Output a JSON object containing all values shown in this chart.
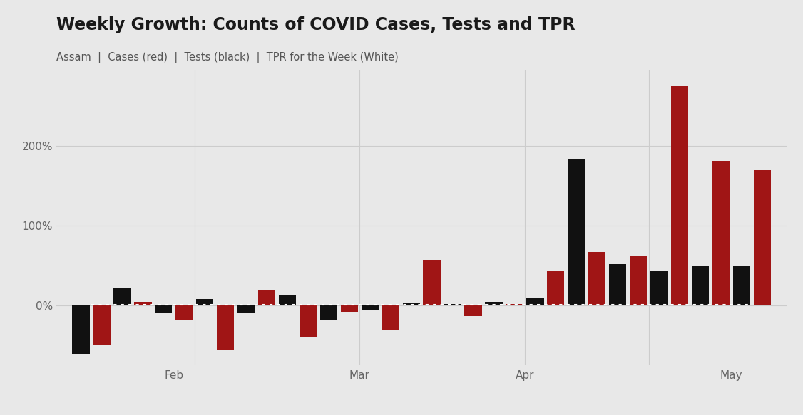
{
  "title": "Weekly Growth: Counts of COVID Cases, Tests and TPR",
  "subtitle": "Assam  |  Cases (red)  |  Tests (black)  |  TPR for the Week (White)",
  "background_color": "#e8e8e8",
  "bar_color_cases": "#a01515",
  "bar_color_tests": "#111111",
  "tpr_line_color": "white",
  "ylim": [
    -75,
    295
  ],
  "ytick_vals": [
    0,
    100,
    200
  ],
  "ytick_labels": [
    "0%",
    "100%",
    "200%"
  ],
  "cases_growth": [
    -50,
    5,
    -18,
    -55,
    20,
    -40,
    -8,
    -30,
    57,
    -13,
    2,
    43,
    67,
    62,
    275,
    182,
    170
  ],
  "tests_growth": [
    -62,
    22,
    -10,
    8,
    -10,
    13,
    -18,
    -5,
    3,
    2,
    5,
    10,
    183,
    52,
    43,
    50,
    50
  ],
  "tpr_values": [
    1,
    1,
    1,
    1,
    1,
    1,
    1,
    1,
    1,
    1,
    1,
    1,
    1,
    1,
    1,
    1,
    1
  ],
  "n": 17,
  "bar_width": 0.42,
  "bar_gap": 0.08,
  "month_dividers": [
    3.5,
    7.5,
    11.5,
    14.5
  ],
  "month_labels": [
    "",
    "Feb",
    "Mar",
    "Apr",
    "May"
  ],
  "grid_color": "#cccccc",
  "title_fontsize": 17,
  "subtitle_fontsize": 10.5,
  "tick_fontsize": 11,
  "axis_color": "#666666"
}
